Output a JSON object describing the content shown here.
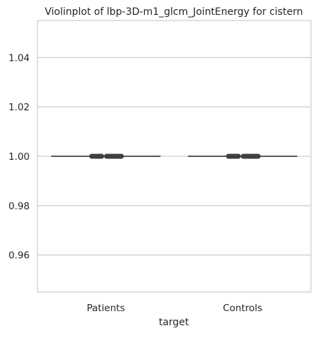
{
  "chart_data": {
    "type": "violin",
    "title": "Violinplot of lbp-3D-m1_glcm_JointEnergy for cistern",
    "xlabel": "target",
    "ylabel": "",
    "categories": [
      "Patients",
      "Controls"
    ],
    "ylim": [
      0.945,
      1.055
    ],
    "yticks": [
      0.96,
      0.98,
      1.0,
      1.02,
      1.04
    ],
    "ytick_labels": [
      "0.96",
      "0.98",
      "1.00",
      "1.02",
      "1.04"
    ],
    "grid": "horizontal",
    "series": [
      {
        "values_min": [
          1.0,
          1.0
        ],
        "values_max": [
          1.0,
          1.0
        ],
        "median": [
          1.0,
          1.0
        ]
      }
    ],
    "colors": {
      "violin_line": "#5a5a5a",
      "box": "#3f3f3f",
      "grid": "#cccccc",
      "axes_edge": "#cccccc"
    }
  }
}
